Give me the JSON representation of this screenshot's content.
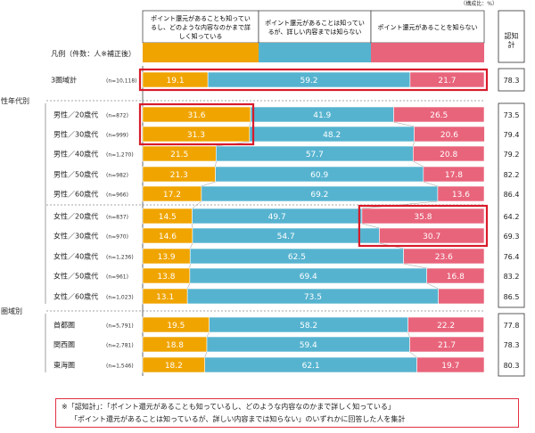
{
  "unit_note": "（構成比：%）",
  "legend": {
    "title": "凡例（件数：人※補正後）",
    "items": [
      {
        "label_lines": [
          "ポイント還元があることも知ってい",
          "るし、どのような内容なのかまで詳",
          "しく知っている"
        ],
        "color": "#f0a400"
      },
      {
        "label_lines": [
          "ポイント還元があることは知ってい",
          "るが、詳しい内容までは知らない"
        ],
        "color": "#56b3cf"
      },
      {
        "label_lines": [
          "ポイント還元があることを知らない"
        ],
        "color": "#e8647b"
      }
    ],
    "aware_header_lines": [
      "認知",
      "計"
    ]
  },
  "groups": [
    {
      "name": "性年代別",
      "first_row": 1,
      "last_row": 10
    },
    {
      "name": "圏域別",
      "first_row": 11,
      "last_row": 13
    }
  ],
  "chart_data": {
    "type": "bar",
    "orientation": "horizontal",
    "stacked": true,
    "unit": "%",
    "categories": [
      "3圏域計",
      "男性／20歳代",
      "男性／30歳代",
      "男性／40歳代",
      "男性／50歳代",
      "男性／60歳代",
      "女性／20歳代",
      "女性／30歳代",
      "女性／40歳代",
      "女性／50歳代",
      "女性／60歳代",
      "首都圏",
      "関西圏",
      "東海圏"
    ],
    "sample_sizes": [
      "(n=10,118)",
      "(n=872)",
      "(n=999)",
      "(n=1,270)",
      "(n=982)",
      "(n=966)",
      "(n=837)",
      "(n=970)",
      "(n=1,236)",
      "(n=961)",
      "(n=1,023)",
      "(n=5,791)",
      "(n=2,781)",
      "(n=1,546)"
    ],
    "series": [
      {
        "name": "ポイント還元があることも知っているし、どのような内容なのかまで詳しく知っている",
        "values": [
          19.1,
          31.6,
          31.3,
          21.5,
          21.3,
          17.2,
          14.5,
          14.6,
          13.9,
          13.8,
          13.1,
          19.5,
          18.8,
          18.2
        ]
      },
      {
        "name": "ポイント還元があることは知っているが、詳しい内容までは知らない",
        "values": [
          59.2,
          41.9,
          48.2,
          57.7,
          60.9,
          69.2,
          49.7,
          54.7,
          62.5,
          69.4,
          73.5,
          58.2,
          59.4,
          62.1
        ]
      },
      {
        "name": "ポイント還元があることを知らない",
        "values": [
          21.7,
          26.5,
          20.6,
          20.8,
          17.8,
          13.6,
          35.8,
          30.7,
          23.6,
          16.8,
          13.4,
          22.2,
          21.7,
          19.7
        ]
      }
    ],
    "awareness_total": {
      "label": "認知計",
      "values": [
        78.3,
        73.5,
        79.4,
        79.2,
        82.2,
        86.4,
        64.2,
        69.3,
        76.4,
        83.2,
        86.5,
        77.8,
        78.3,
        80.3
      ]
    },
    "value_labels": [
      [
        "19.1",
        "59.2",
        "21.7"
      ],
      [
        "31.6",
        "41.9",
        "26.5"
      ],
      [
        "31.3",
        "48.2",
        "20.6"
      ],
      [
        "21.5",
        "57.7",
        "20.8"
      ],
      [
        "21.3",
        "60.9",
        "17.8"
      ],
      [
        "17.2",
        "69.2",
        "13.6"
      ],
      [
        "14.5",
        "49.7",
        "35.8"
      ],
      [
        "14.6",
        "54.7",
        "30.7"
      ],
      [
        "13.9",
        "62.5",
        "23.6"
      ],
      [
        "13.8",
        "69.4",
        "16.8"
      ],
      [
        "13.1",
        "73.5",
        ""
      ],
      [
        "19.5",
        "58.2",
        "22.2"
      ],
      [
        "18.8",
        "59.4",
        "21.7"
      ],
      [
        "18.2",
        "62.1",
        "19.7"
      ]
    ],
    "awareness_labels": [
      "78.3",
      "73.5",
      "79.4",
      "79.2",
      "82.2",
      "86.4",
      "64.2",
      "69.3",
      "76.4",
      "83.2",
      "86.5",
      "77.8",
      "78.3",
      "80.3"
    ],
    "highlights": [
      {
        "rows": [
          0
        ],
        "segments": "all"
      },
      {
        "rows": [
          1,
          2
        ],
        "segments": [
          0
        ]
      },
      {
        "rows": [
          6,
          7
        ],
        "segments": [
          2
        ]
      }
    ]
  },
  "footnote": {
    "line1": "※「認知計」：「ポイント還元があることも知っているし、どのような内容なのかまで詳しく知っている」",
    "line2": "「ポイント還元があることは知っているが、詳しい内容までは知らない」のいずれかに回答した人を集計"
  }
}
